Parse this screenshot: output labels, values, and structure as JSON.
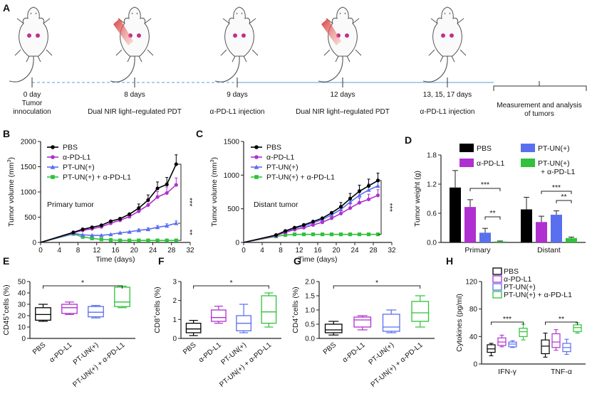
{
  "panel_labels": [
    "A",
    "B",
    "C",
    "D",
    "E",
    "F",
    "G",
    "H"
  ],
  "timeline": {
    "events": [
      {
        "lines": [
          "0 day",
          "Tumor",
          "innoculation"
        ],
        "laser": false
      },
      {
        "lines": [
          "8 days",
          "Dual NIR light–regulated PDT"
        ],
        "laser": true
      },
      {
        "lines": [
          "9 days",
          "α-PD-L1 injection"
        ],
        "laser": false
      },
      {
        "lines": [
          "12 days",
          "Dual NIR light–regulated PDT"
        ],
        "laser": true
      },
      {
        "lines": [
          "13, 15, 17 days",
          "α-PD-L1 injection"
        ],
        "laser": false
      },
      {
        "lines": [
          "Measurement and analysis",
          "of tumors"
        ],
        "laser": false
      }
    ]
  },
  "colors": {
    "PBS": "#000000",
    "aPDL1": "#b02fd0",
    "PTUN": "#5a6ff0",
    "combo": "#2fc23a",
    "timeline": "#7ab0e0"
  },
  "chart_data": [
    {
      "id": "B",
      "type": "line",
      "title": "Primary tumor",
      "xlabel": "Time (days)",
      "ylabel": "Tumor volume (mm³)",
      "ylabel_main": "Tumor volume (mm",
      "ylabel_unit": "3",
      "ylabel_close": ")",
      "xlim": [
        0,
        32
      ],
      "ylim": [
        0,
        2000
      ],
      "xticks": [
        "0",
        "4",
        "8",
        "12",
        "16",
        "20",
        "24",
        "28",
        "32"
      ],
      "yticks": [
        "0",
        "500",
        "1000",
        "1500",
        "2000"
      ],
      "x": [
        7,
        9,
        11,
        13,
        15,
        17,
        19,
        21,
        23,
        25,
        27,
        29
      ],
      "series": [
        {
          "name": "PBS",
          "key": "PBS",
          "values": [
            200,
            260,
            300,
            340,
            420,
            470,
            560,
            680,
            840,
            1070,
            1150,
            1550
          ]
        },
        {
          "name": "α-PD-L1",
          "key": "aPDL1",
          "values": [
            190,
            240,
            270,
            310,
            380,
            440,
            510,
            620,
            740,
            900,
            980,
            1140
          ]
        },
        {
          "name": "PT-UN(+)",
          "key": "PTUN",
          "values": [
            180,
            150,
            140,
            140,
            160,
            190,
            210,
            240,
            260,
            300,
            330,
            380
          ]
        },
        {
          "name": "PT-UN(+) + α-PD-L1",
          "key": "combo",
          "values": [
            170,
            110,
            80,
            60,
            50,
            40,
            40,
            40,
            40,
            40,
            40,
            40
          ]
        }
      ],
      "annotations": [
        "***",
        "**"
      ]
    },
    {
      "id": "C",
      "type": "line",
      "title": "Distant tumor",
      "xlabel": "Time (days)",
      "ylabel": "Tumor volume (mm³)",
      "ylabel_main": "Tumor volume (mm",
      "ylabel_unit": "3",
      "ylabel_close": ")",
      "xlim": [
        0,
        32
      ],
      "ylim": [
        0,
        1500
      ],
      "xticks": [
        "0",
        "4",
        "8",
        "12",
        "16",
        "20",
        "24",
        "28",
        "32"
      ],
      "yticks": [
        "0",
        "500",
        "1000",
        "1500"
      ],
      "x": [
        7,
        9,
        11,
        13,
        15,
        17,
        19,
        21,
        23,
        25,
        27,
        29
      ],
      "series": [
        {
          "name": "PBS",
          "key": "PBS",
          "values": [
            110,
            170,
            220,
            260,
            310,
            360,
            440,
            530,
            650,
            760,
            840,
            920
          ]
        },
        {
          "name": "α-PD-L1",
          "key": "aPDL1",
          "values": [
            100,
            150,
            190,
            220,
            260,
            300,
            360,
            430,
            510,
            590,
            640,
            700
          ]
        },
        {
          "name": "PT-UN(+)",
          "key": "PTUN",
          "values": [
            105,
            160,
            210,
            245,
            290,
            340,
            410,
            490,
            600,
            700,
            780,
            840
          ]
        },
        {
          "name": "PT-UN(+) + α-PD-L1",
          "key": "combo",
          "values": [
            90,
            110,
            120,
            120,
            120,
            120,
            120,
            120,
            120,
            120,
            120,
            120
          ]
        }
      ],
      "annotations": [
        "***"
      ]
    },
    {
      "id": "D",
      "type": "bar",
      "ylabel": "Tumor weight (g)",
      "ylim": [
        0,
        1.8
      ],
      "yticks": [
        "0.0",
        "0.6",
        "1.2",
        "1.8"
      ],
      "categories": [
        "Primary",
        "Distant"
      ],
      "series": [
        {
          "name": "PBS",
          "key": "PBS",
          "values": [
            1.13,
            0.68
          ],
          "errors": [
            0.35,
            0.25
          ]
        },
        {
          "name": "α-PD-L1",
          "key": "aPDL1",
          "values": [
            0.73,
            0.42
          ],
          "errors": [
            0.15,
            0.12
          ]
        },
        {
          "name": "PT-UN(+)",
          "key": "PTUN",
          "values": [
            0.2,
            0.57
          ],
          "errors": [
            0.09,
            0.08
          ]
        },
        {
          "name": "PT-UN(+) + α-PD-L1",
          "key": "combo",
          "legend_lines": [
            "PT-UN(+)",
            "+ α-PD-L1"
          ],
          "values": [
            0.02,
            0.09
          ],
          "errors": [
            0.01,
            0.02
          ]
        }
      ],
      "annotations": [
        "***",
        "**",
        "***",
        "**"
      ]
    },
    {
      "id": "E",
      "type": "box",
      "ylabel": "CD45⁺cells (%)",
      "ylabel_main": "CD45",
      "ylabel_sup": "+",
      "ylabel_tail": "cells (%)",
      "ylim": [
        0,
        50
      ],
      "yticks": [
        "0",
        "10",
        "20",
        "30",
        "40",
        "50"
      ],
      "categories": [
        "PBS",
        "α-PD-L1",
        "PT-UN(+)",
        "PT-UN(+) + α-PD-L1"
      ],
      "boxes": [
        {
          "key": "PBS",
          "min": 15,
          "q1": 16,
          "median": 21,
          "q3": 27,
          "max": 30
        },
        {
          "key": "aPDL1",
          "min": 21,
          "q1": 22,
          "median": 27,
          "q3": 30,
          "max": 32
        },
        {
          "key": "PTUN",
          "min": 18,
          "q1": 19,
          "median": 23,
          "q3": 28,
          "max": 29
        },
        {
          "key": "combo",
          "min": 27,
          "q1": 28,
          "median": 32,
          "q3": 45,
          "max": 46
        }
      ],
      "annotation": "*"
    },
    {
      "id": "F",
      "type": "box",
      "ylabel": "CD8⁺cells (%)",
      "ylabel_main": "CD8",
      "ylabel_sup": "+",
      "ylabel_tail": "cells (%)",
      "ylim": [
        0,
        3
      ],
      "yticks": [
        "0",
        "1",
        "2",
        "3"
      ],
      "categories": [
        "PBS",
        "α-PD-L1",
        "PT-UN(+)",
        "PT-UN(+) + α-PD-L1"
      ],
      "boxes": [
        {
          "key": "PBS",
          "min": 0.15,
          "q1": 0.3,
          "median": 0.5,
          "q3": 0.8,
          "max": 0.95
        },
        {
          "key": "aPDL1",
          "min": 0.8,
          "q1": 0.9,
          "median": 1.1,
          "q3": 1.5,
          "max": 1.7
        },
        {
          "key": "PTUN",
          "min": 0.3,
          "q1": 0.4,
          "median": 0.8,
          "q3": 1.2,
          "max": 1.8
        },
        {
          "key": "combo",
          "min": 0.6,
          "q1": 0.8,
          "median": 1.4,
          "q3": 2.25,
          "max": 2.4
        }
      ],
      "annotation": "*"
    },
    {
      "id": "G",
      "type": "box",
      "ylabel": "CD4⁺cells (%)",
      "ylabel_main": "CD4",
      "ylabel_sup": "+",
      "ylabel_tail": "cells (%)",
      "ylim": [
        0,
        2.0
      ],
      "yticks": [
        "0.0",
        "0.5",
        "1.0",
        "1.5",
        "2.0"
      ],
      "categories": [
        "PBS",
        "α-PD-L1",
        "PT-UN(+)",
        "PT-UN(+) + α-PD-L1"
      ],
      "boxes": [
        {
          "key": "PBS",
          "min": 0.12,
          "q1": 0.2,
          "median": 0.3,
          "q3": 0.5,
          "max": 0.6
        },
        {
          "key": "aPDL1",
          "min": 0.3,
          "q1": 0.4,
          "median": 0.65,
          "q3": 0.75,
          "max": 0.8
        },
        {
          "key": "PTUN",
          "min": 0.2,
          "q1": 0.25,
          "median": 0.4,
          "q3": 0.85,
          "max": 1.0
        },
        {
          "key": "combo",
          "min": 0.4,
          "q1": 0.6,
          "median": 0.9,
          "q3": 1.3,
          "max": 1.5
        }
      ],
      "annotation": "*"
    },
    {
      "id": "H",
      "type": "box",
      "ylabel": "Cytokines (pg/ml)",
      "ylim": [
        0,
        120
      ],
      "yticks": [
        "0",
        "40",
        "80",
        "120"
      ],
      "categories": [
        "IFN-γ",
        "TNF-α"
      ],
      "legend": [
        "PBS",
        "α-PD-L1",
        "PT-UN(+)",
        "PT-UN(+) + α-PD-L1"
      ],
      "groups": [
        [
          {
            "key": "PBS",
            "min": 12,
            "q1": 17,
            "median": 22,
            "q3": 28,
            "max": 30
          },
          {
            "key": "aPDL1",
            "min": 25,
            "q1": 27,
            "median": 32,
            "q3": 38,
            "max": 42
          },
          {
            "key": "PTUN",
            "min": 24,
            "q1": 25,
            "median": 29,
            "q3": 32,
            "max": 34
          },
          {
            "key": "combo",
            "min": 35,
            "q1": 40,
            "median": 47,
            "q3": 52,
            "max": 58
          }
        ],
        [
          {
            "key": "PBS",
            "min": 10,
            "q1": 15,
            "median": 26,
            "q3": 35,
            "max": 45
          },
          {
            "key": "aPDL1",
            "min": 20,
            "q1": 24,
            "median": 32,
            "q3": 44,
            "max": 50
          },
          {
            "key": "PTUN",
            "min": 14,
            "q1": 18,
            "median": 24,
            "q3": 30,
            "max": 36
          },
          {
            "key": "combo",
            "min": 45,
            "q1": 47,
            "median": 53,
            "q3": 57,
            "max": 60
          }
        ]
      ],
      "annotations": [
        "***",
        "**"
      ]
    }
  ]
}
